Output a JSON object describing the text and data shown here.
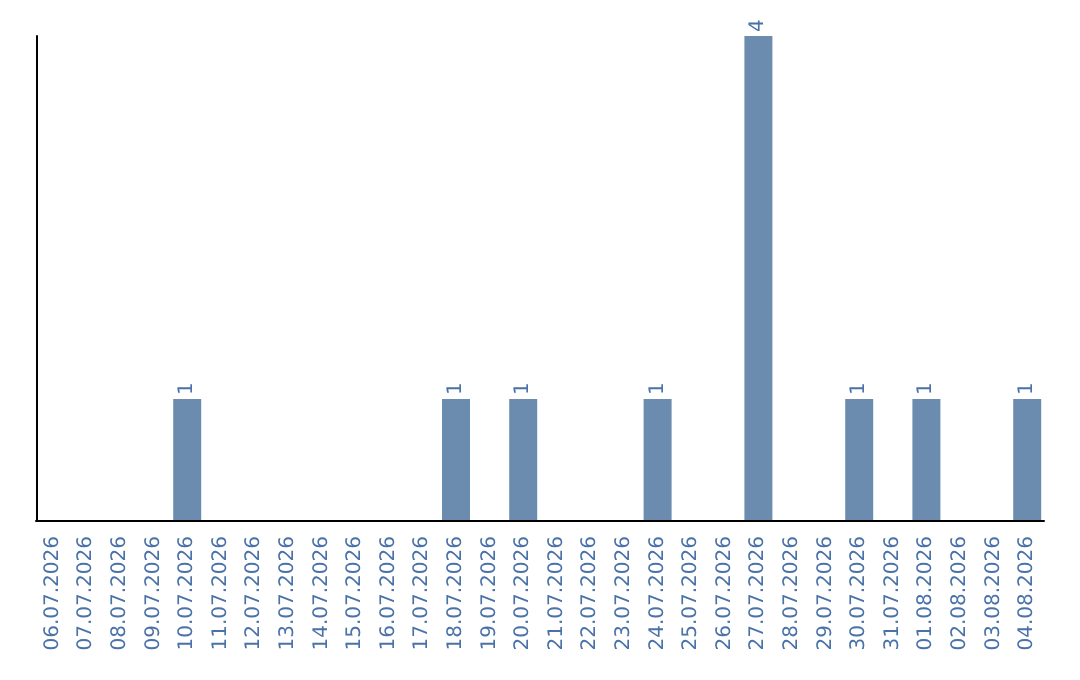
{
  "chart_data": {
    "type": "bar",
    "categories": [
      "06.07.2026",
      "07.07.2026",
      "08.07.2026",
      "09.07.2026",
      "10.07.2026",
      "11.07.2026",
      "12.07.2026",
      "13.07.2026",
      "14.07.2026",
      "15.07.2026",
      "16.07.2026",
      "17.07.2026",
      "18.07.2026",
      "19.07.2026",
      "20.07.2026",
      "21.07.2026",
      "22.07.2026",
      "23.07.2026",
      "24.07.2026",
      "25.07.2026",
      "26.07.2026",
      "27.07.2026",
      "28.07.2026",
      "29.07.2026",
      "30.07.2026",
      "31.07.2026",
      "01.08.2026",
      "02.08.2026",
      "03.08.2026",
      "04.08.2026"
    ],
    "values": [
      0,
      0,
      0,
      0,
      1,
      0,
      0,
      0,
      0,
      0,
      0,
      0,
      1,
      0,
      1,
      0,
      0,
      0,
      1,
      0,
      0,
      4,
      0,
      0,
      1,
      0,
      1,
      0,
      0,
      1
    ],
    "value_labels": [
      null,
      null,
      null,
      null,
      "1",
      null,
      null,
      null,
      null,
      null,
      null,
      null,
      "1",
      null,
      "1",
      null,
      null,
      null,
      "1",
      null,
      null,
      "4",
      null,
      null,
      "1",
      null,
      "1",
      null,
      null,
      "1"
    ],
    "color": "#6b8cae",
    "grid": false,
    "tick_labels": "x"
  }
}
